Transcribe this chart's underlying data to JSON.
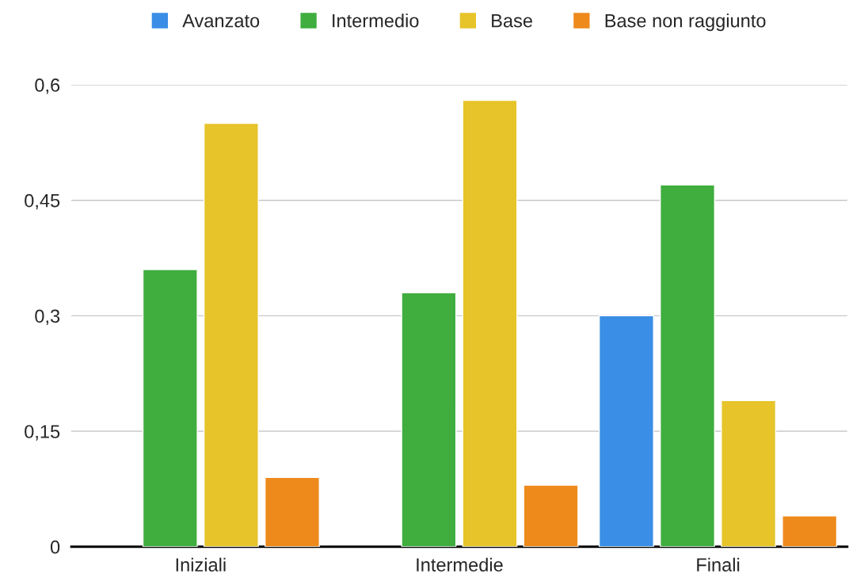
{
  "chart_data": {
    "type": "bar",
    "categories": [
      "Iniziali",
      "Intermedie",
      "Finali"
    ],
    "series": [
      {
        "name": "Avanzato",
        "color": "#3a8ee6",
        "values": [
          null,
          null,
          0.3
        ]
      },
      {
        "name": "Intermedio",
        "color": "#3fae3f",
        "values": [
          0.36,
          0.33,
          0.47
        ]
      },
      {
        "name": "Base",
        "color": "#e6c42a",
        "values": [
          0.55,
          0.58,
          0.19
        ]
      },
      {
        "name": "Base non raggiunto",
        "color": "#ee8a1c",
        "values": [
          0.09,
          0.08,
          0.04
        ]
      }
    ],
    "ylim": [
      0,
      0.6
    ],
    "yticks": [
      {
        "value": 0,
        "label": "0"
      },
      {
        "value": 0.15,
        "label": "0,15"
      },
      {
        "value": 0.3,
        "label": "0,3"
      },
      {
        "value": 0.45,
        "label": "0,45"
      },
      {
        "value": 0.6,
        "label": "0,6"
      }
    ],
    "grid": "y",
    "legend": "top"
  }
}
